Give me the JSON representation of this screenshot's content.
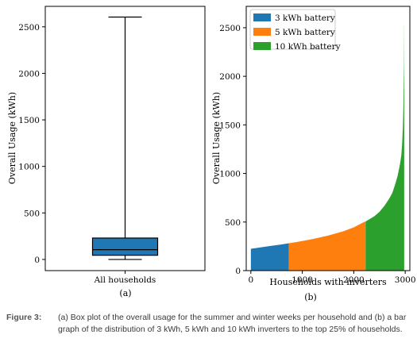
{
  "chart_data": [
    {
      "type": "boxplot",
      "panel_label": "(a)",
      "categories": [
        "All households"
      ],
      "ylabel": "Overall Usage (kWh)",
      "xlabel": "",
      "ylim": [
        -120,
        2720
      ],
      "yticks": [
        0,
        500,
        1000,
        1500,
        2000,
        2500
      ],
      "box": {
        "whisker_low": 0,
        "q1": 45,
        "median": 105,
        "q3": 230,
        "whisker_high": 2605
      },
      "color": "#1f77b4",
      "grid": false
    },
    {
      "type": "area",
      "panel_label": "(b)",
      "xlabel": "Households with inverters",
      "ylabel": "Overall Usage (kWh)",
      "xlim": [
        -90,
        3090
      ],
      "ylim": [
        0,
        2720
      ],
      "xticks": [
        0,
        1000,
        2000,
        3000
      ],
      "yticks": [
        0,
        500,
        1000,
        1500,
        2000,
        2500
      ],
      "legend_position": "top-left",
      "curve": {
        "x": [
          0,
          200,
          400,
          600,
          740,
          900,
          1200,
          1500,
          1800,
          2000,
          2200,
          2230,
          2400,
          2500,
          2600,
          2700,
          2750,
          2800,
          2850,
          2900,
          2925,
          2940,
          2955,
          2965,
          2975,
          2980
        ],
        "y": [
          225,
          240,
          255,
          270,
          282,
          295,
          325,
          360,
          405,
          445,
          500,
          505,
          560,
          605,
          670,
          750,
          800,
          880,
          970,
          1100,
          1190,
          1300,
          1480,
          1700,
          2100,
          2605
        ]
      },
      "series": [
        {
          "name": "3 kWh battery",
          "x_range": [
            0,
            740
          ],
          "color": "#1f77b4"
        },
        {
          "name": "5 kWh battery",
          "x_range": [
            740,
            2230
          ],
          "color": "#ff7f0e"
        },
        {
          "name": "10 kWh battery",
          "x_range": [
            2230,
            2980
          ],
          "color": "#2ca02c"
        }
      ],
      "grid": false
    }
  ],
  "caption": {
    "label": "Figure 3:",
    "text": "(a) Box plot of the overall usage for the summer and winter weeks per household and (b) a bar graph of the distribution of 3 kWh, 5 kWh and 10 kWh inverters to the top 25% of households."
  }
}
